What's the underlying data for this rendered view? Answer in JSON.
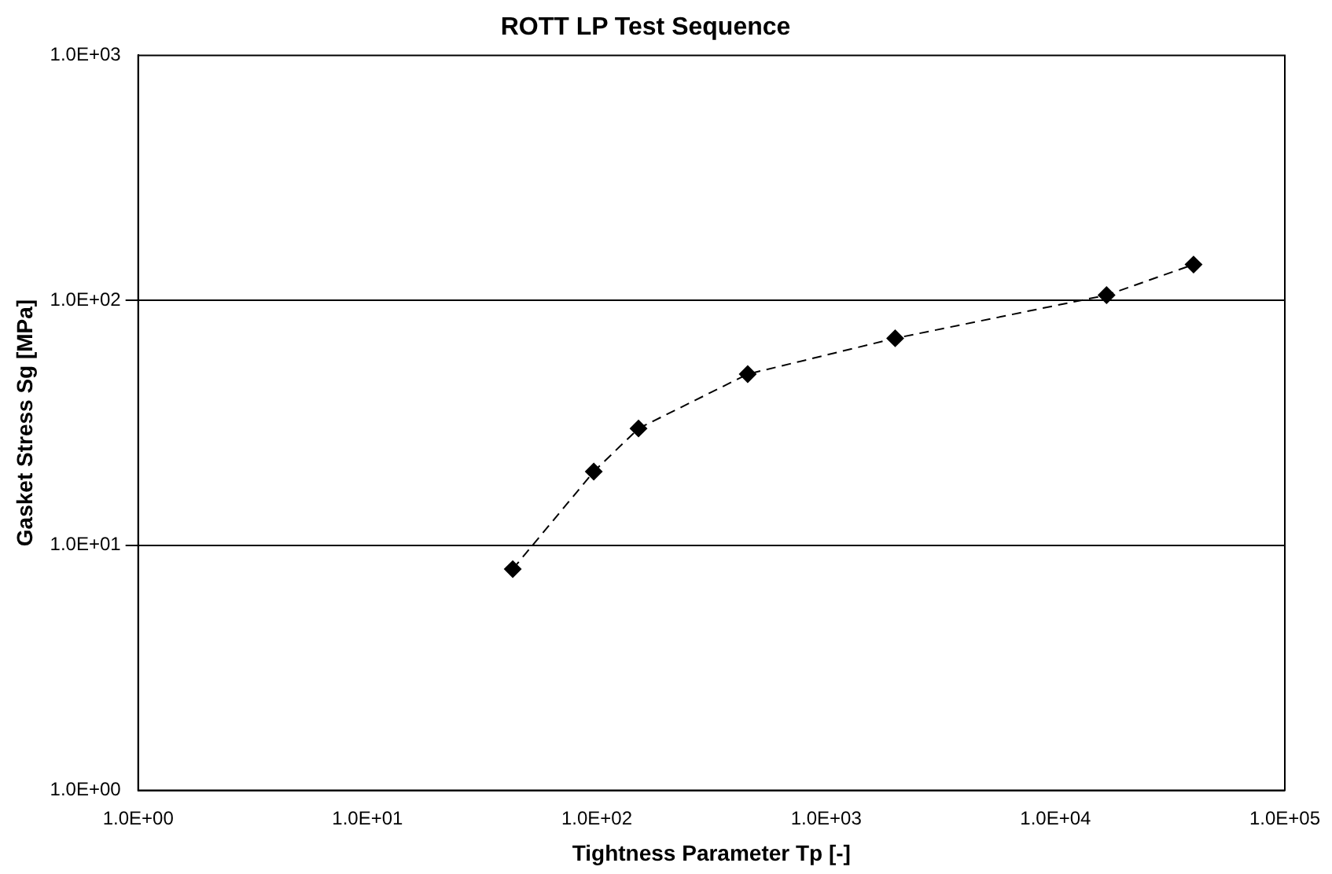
{
  "chart_data": {
    "type": "line",
    "title": "ROTT LP Test Sequence",
    "xlabel": "Tightness Parameter Tp [-]",
    "ylabel": "Gasket Stress Sg [MPa]",
    "x": [
      43,
      97,
      152,
      455,
      2000,
      16700,
      40000
    ],
    "series": [
      {
        "color": "#000000",
        "values": [
          8,
          20,
          30,
          50,
          70,
          105,
          140
        ]
      }
    ],
    "log": "xy",
    "xlim": [
      1,
      100000
    ],
    "ylim": [
      1,
      1000
    ],
    "xticks": [
      {
        "value": 1,
        "label": "1.0E+00"
      },
      {
        "value": 10,
        "label": "1.0E+01"
      },
      {
        "value": 100,
        "label": "1.0E+02"
      },
      {
        "value": 1000,
        "label": "1.0E+03"
      },
      {
        "value": 10000,
        "label": "1.0E+04"
      },
      {
        "value": 100000,
        "label": "1.0E+05"
      }
    ],
    "yticks": [
      {
        "value": 1,
        "label": "1.0E+00"
      },
      {
        "value": 10,
        "label": "1.0E+01"
      },
      {
        "value": 100,
        "label": "1.0E+02"
      },
      {
        "value": 1000,
        "label": "1.0E+03"
      }
    ],
    "grid": "y",
    "legend": false,
    "marker": "diamond",
    "line_style": "dashed"
  }
}
